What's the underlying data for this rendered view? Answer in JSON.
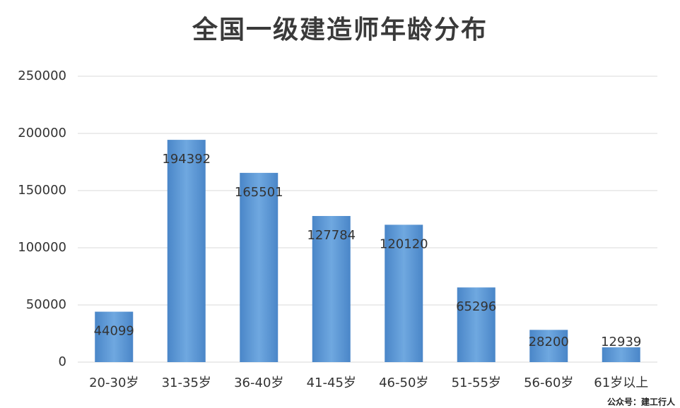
{
  "chart_data": {
    "type": "bar",
    "title": "全国一级建造师年龄分布",
    "categories": [
      "20-30岁",
      "31-35岁",
      "36-40岁",
      "41-45岁",
      "46-50岁",
      "51-55岁",
      "56-60岁",
      "61岁以上"
    ],
    "values": [
      44099,
      194392,
      165501,
      127784,
      120120,
      65296,
      28200,
      12939
    ],
    "color": "#5b9bd5",
    "ylim": [
      0,
      250000
    ],
    "yticks": [
      0,
      50000,
      100000,
      150000,
      200000,
      250000
    ],
    "grid": true,
    "watermark": "公众号：建工行人"
  }
}
